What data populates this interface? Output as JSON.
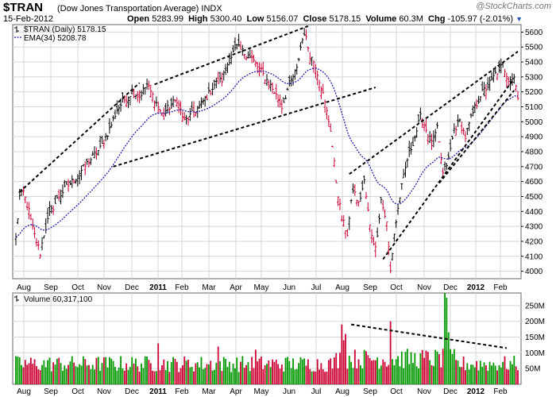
{
  "header": {
    "ticker": "$TRAN",
    "name": "(Dow Jones Transportation Average)",
    "exchange": "INDX",
    "watermark": "@StockCharts.com",
    "date": "15-Feb-2012",
    "open_label": "Open",
    "open": "5283.99",
    "high_label": "High",
    "high": "5300.40",
    "low_label": "Low",
    "low": "5156.07",
    "close_label": "Close",
    "close": "5178.15",
    "volume_label": "Volume",
    "volume": "60.3M",
    "chg_label": "Chg",
    "chg": "-105.97 (-2.01%)"
  },
  "colors": {
    "up": "#009900",
    "down": "#cc0033",
    "ema": "#2222aa",
    "grid": "#d5d5d5",
    "trend": "#000000"
  },
  "chart_data": [
    {
      "type": "candlestick",
      "title": "$TRAN (Dow Jones Transportation Average)",
      "legend": [
        {
          "label": "$TRAN (Daily) 5178.15",
          "icon": "candle-icon"
        },
        {
          "label": "EMA(34) 5208.78",
          "icon": "dotted-line-icon"
        }
      ],
      "ylim": [
        3950,
        5650
      ],
      "yticks": [
        4000,
        4100,
        4200,
        4300,
        4400,
        4500,
        4600,
        4700,
        4800,
        4900,
        5000,
        5100,
        5200,
        5300,
        5400,
        5500,
        5600
      ],
      "xticks": [
        "Aug",
        "Sep",
        "Oct",
        "Nov",
        "Dec",
        "2011",
        "Feb",
        "Mar",
        "Apr",
        "May",
        "Jun",
        "Jul",
        "Aug",
        "Sep",
        "Oct",
        "Nov",
        "Dec",
        "2012",
        "Feb"
      ],
      "close_anchors": [
        [
          0,
          4220
        ],
        [
          2,
          4500
        ],
        [
          4,
          4530
        ],
        [
          7,
          4400
        ],
        [
          9,
          4280
        ],
        [
          13,
          4120
        ],
        [
          15,
          4250
        ],
        [
          18,
          4380
        ],
        [
          22,
          4480
        ],
        [
          26,
          4550
        ],
        [
          30,
          4600
        ],
        [
          34,
          4660
        ],
        [
          38,
          4720
        ],
        [
          42,
          4780
        ],
        [
          45,
          4820
        ],
        [
          50,
          4950
        ],
        [
          54,
          5080
        ],
        [
          58,
          5150
        ],
        [
          62,
          5200
        ],
        [
          66,
          5170
        ],
        [
          70,
          5250
        ],
        [
          74,
          5150
        ],
        [
          78,
          5050
        ],
        [
          82,
          5100
        ],
        [
          86,
          5150
        ],
        [
          90,
          5000
        ],
        [
          94,
          5050
        ],
        [
          98,
          5100
        ],
        [
          102,
          5170
        ],
        [
          106,
          5250
        ],
        [
          110,
          5280
        ],
        [
          114,
          5420
        ],
        [
          118,
          5500
        ],
        [
          122,
          5460
        ],
        [
          126,
          5420
        ],
        [
          130,
          5350
        ],
        [
          134,
          5280
        ],
        [
          138,
          5200
        ],
        [
          142,
          5100
        ],
        [
          146,
          5250
        ],
        [
          150,
          5350
        ],
        [
          152,
          5500
        ],
        [
          154,
          5600
        ],
        [
          157,
          5450
        ],
        [
          160,
          5380
        ],
        [
          164,
          5180
        ],
        [
          168,
          4950
        ],
        [
          171,
          4600
        ],
        [
          174,
          4350
        ],
        [
          177,
          4250
        ],
        [
          180,
          4550
        ],
        [
          183,
          4450
        ],
        [
          186,
          4600
        ],
        [
          189,
          4300
        ],
        [
          192,
          4150
        ],
        [
          195,
          4480
        ],
        [
          198,
          4320
        ],
        [
          200,
          4000
        ],
        [
          202,
          4250
        ],
        [
          205,
          4500
        ],
        [
          209,
          4750
        ],
        [
          213,
          4900
        ],
        [
          216,
          5030
        ],
        [
          219,
          4950
        ],
        [
          222,
          4850
        ],
        [
          225,
          4950
        ],
        [
          228,
          4650
        ],
        [
          231,
          4750
        ],
        [
          234,
          4950
        ],
        [
          237,
          5000
        ],
        [
          240,
          4900
        ],
        [
          244,
          5060
        ],
        [
          248,
          5180
        ],
        [
          252,
          5240
        ],
        [
          256,
          5320
        ],
        [
          260,
          5380
        ],
        [
          263,
          5290
        ],
        [
          266,
          5300
        ],
        [
          268,
          5178
        ]
      ],
      "ema_label": "EMA(34)",
      "trendlines": [
        {
          "from": [
            2,
            4530
          ],
          "to": [
            66,
            5260
          ]
        },
        {
          "from": [
            74,
            5250
          ],
          "to": [
            156,
            5640
          ]
        },
        {
          "from": [
            52,
            4700
          ],
          "to": [
            192,
            5230
          ]
        },
        {
          "from": [
            178,
            4650
          ],
          "to": [
            268,
            5470
          ]
        },
        {
          "from": [
            196,
            4080
          ],
          "to": [
            266,
            5290
          ]
        },
        {
          "from": [
            226,
            4590
          ],
          "to": [
            266,
            5210
          ]
        }
      ]
    },
    {
      "type": "bar",
      "title": "Volume 60,317,100",
      "legend_label": "Volume 60,317,100",
      "ylim": [
        0,
        290
      ],
      "yticks": [
        50,
        100,
        150,
        200,
        250
      ],
      "ytick_labels": [
        "50M",
        "100M",
        "150M",
        "200M",
        "250M"
      ],
      "units": "M",
      "typical_volume": 70,
      "spikes": [
        {
          "index": 76,
          "value": 130
        },
        {
          "index": 108,
          "value": 120
        },
        {
          "index": 128,
          "value": 110
        },
        {
          "index": 174,
          "value": 190
        },
        {
          "index": 175,
          "value": 140
        },
        {
          "index": 176,
          "value": 160
        },
        {
          "index": 200,
          "value": 200
        },
        {
          "index": 229,
          "value": 290
        },
        {
          "index": 230,
          "value": 275
        },
        {
          "index": 231,
          "value": 165
        }
      ],
      "trendline": {
        "from": [
          179,
          190
        ],
        "to": [
          262,
          115
        ]
      }
    }
  ]
}
